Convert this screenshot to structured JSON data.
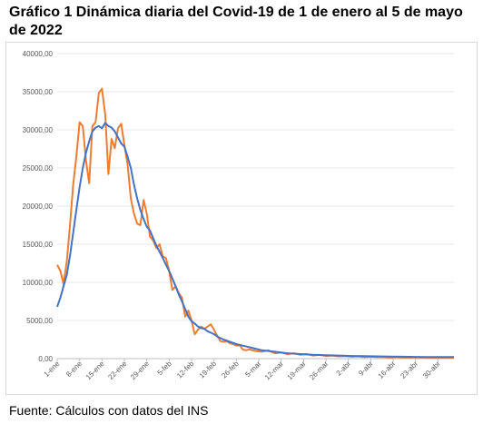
{
  "title": "Gráfico 1 Dinámica diaria del Covid-19 de 1 de enero al 5 de mayo de 2022",
  "footer": "Fuente: Cálculos con datos del INS",
  "chart_data": {
    "type": "line",
    "title": "",
    "xlabel": "",
    "ylabel": "",
    "ylim": [
      0,
      40000
    ],
    "grid": true,
    "legend": "none",
    "y_ticks": [
      0,
      5000,
      10000,
      15000,
      20000,
      25000,
      30000,
      35000,
      40000
    ],
    "y_tick_labels": [
      "0,00",
      "5000,00",
      "10000,00",
      "15000,00",
      "20000,00",
      "25000,00",
      "30000,00",
      "35000,00",
      "40000,00"
    ],
    "x_tick_labels": [
      "1-ene",
      "8-ene",
      "15-ene",
      "22-ene",
      "29-ene",
      "5-feb",
      "12-feb",
      "19-feb",
      "26-feb",
      "5-mar",
      "12-mar",
      "19-mar",
      "26-mar",
      "2-abr",
      "9-abr",
      "16-abr",
      "23-abr",
      "30-abr"
    ],
    "x_tick_days": [
      0,
      7,
      14,
      21,
      28,
      35,
      42,
      49,
      56,
      63,
      70,
      77,
      84,
      91,
      98,
      105,
      112,
      119
    ],
    "x_range_days": [
      0,
      124
    ],
    "series": [
      {
        "color": "#ed7d31",
        "days": [
          0,
          1,
          2,
          3,
          4,
          5,
          6,
          7,
          8,
          9,
          10,
          11,
          12,
          13,
          14,
          15,
          16,
          17,
          18,
          19,
          20,
          21,
          22,
          23,
          24,
          25,
          26,
          27,
          28,
          29,
          30,
          31,
          32,
          33,
          34,
          35,
          36,
          37,
          38,
          39,
          40,
          41,
          42,
          43,
          44,
          45,
          46,
          47,
          48,
          49,
          50,
          51,
          52,
          53,
          54,
          55,
          56,
          57,
          58,
          59,
          60,
          62,
          64,
          66,
          68,
          70,
          72,
          74,
          76,
          78,
          80,
          82,
          84,
          86,
          88,
          90,
          92,
          94,
          96,
          98,
          100,
          102,
          104,
          106,
          108,
          110,
          112,
          114,
          116,
          118,
          120,
          122,
          124
        ],
        "values": [
          12300,
          11500,
          9800,
          12800,
          17500,
          22800,
          26500,
          31000,
          30500,
          26000,
          23000,
          30500,
          31000,
          34800,
          35400,
          32000,
          24200,
          28800,
          27600,
          30200,
          30800,
          28000,
          25500,
          21000,
          19000,
          17700,
          17500,
          20800,
          19000,
          16000,
          15500,
          14500,
          15000,
          13400,
          13200,
          11500,
          9000,
          9500,
          8600,
          8000,
          5500,
          6300,
          5000,
          3200,
          3800,
          4200,
          3900,
          4200,
          4500,
          3800,
          3000,
          2300,
          2200,
          2300,
          2000,
          1900,
          1700,
          1800,
          1200,
          1100,
          1200,
          1000,
          900,
          1100,
          700,
          800,
          600,
          700,
          500,
          600,
          400,
          500,
          350,
          400,
          300,
          350,
          250,
          300,
          200,
          250,
          200,
          200,
          150,
          200,
          150,
          150,
          180,
          150,
          150,
          120,
          150,
          130,
          150
        ]
      },
      {
        "color": "#4472c4",
        "days": [
          0,
          1,
          2,
          3,
          4,
          5,
          6,
          7,
          8,
          9,
          10,
          11,
          12,
          13,
          14,
          15,
          16,
          17,
          18,
          19,
          20,
          21,
          22,
          23,
          24,
          25,
          26,
          27,
          28,
          29,
          30,
          31,
          32,
          33,
          34,
          35,
          36,
          37,
          38,
          39,
          40,
          41,
          42,
          43,
          44,
          45,
          46,
          47,
          48,
          49,
          50,
          52,
          54,
          56,
          58,
          60,
          62,
          64,
          66,
          68,
          70,
          72,
          74,
          76,
          78,
          80,
          84,
          88,
          92,
          96,
          100,
          104,
          108,
          112,
          116,
          120,
          124
        ],
        "values": [
          6800,
          8000,
          9500,
          11000,
          13500,
          16500,
          19500,
          22500,
          25000,
          27000,
          28500,
          29800,
          30300,
          30500,
          30200,
          30900,
          30500,
          30300,
          29800,
          29000,
          28200,
          27800,
          26500,
          25000,
          22800,
          21000,
          19500,
          18300,
          17300,
          16800,
          15800,
          14800,
          14000,
          13200,
          12300,
          11500,
          10500,
          9500,
          8400,
          7500,
          6500,
          5500,
          4900,
          4600,
          4200,
          4000,
          3900,
          3600,
          3400,
          3200,
          2900,
          2500,
          2200,
          1900,
          1700,
          1500,
          1300,
          1100,
          1000,
          900,
          800,
          700,
          650,
          600,
          550,
          500,
          450,
          400,
          350,
          320,
          300,
          270,
          250,
          230,
          220,
          200,
          200
        ]
      }
    ]
  }
}
